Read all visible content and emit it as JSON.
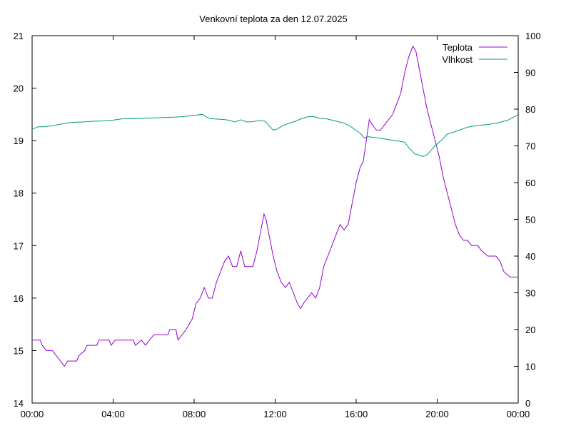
{
  "chart_data": {
    "type": "line",
    "title": "Venkovní teplota za den 12.07.2025",
    "x_ticks": [
      "00:00",
      "04:00",
      "08:00",
      "12:00",
      "16:00",
      "20:00",
      "00:00"
    ],
    "xlim_hours": [
      0,
      24
    ],
    "y_left": {
      "ticks": [
        14,
        15,
        16,
        17,
        18,
        19,
        20,
        21
      ],
      "lim": [
        14,
        21
      ]
    },
    "y_right": {
      "ticks": [
        0,
        10,
        20,
        30,
        40,
        50,
        60,
        70,
        80,
        90,
        100
      ],
      "lim": [
        0,
        100
      ]
    },
    "grid": false,
    "legend_position": "top-right",
    "series": [
      {
        "name": "Teplota",
        "axis": "left",
        "color": "#9400d3",
        "points": [
          [
            0.0,
            15.2
          ],
          [
            0.4,
            15.2
          ],
          [
            0.5,
            15.1
          ],
          [
            0.7,
            15.0
          ],
          [
            1.0,
            15.0
          ],
          [
            1.2,
            14.9
          ],
          [
            1.4,
            14.8
          ],
          [
            1.6,
            14.7
          ],
          [
            1.75,
            14.8
          ],
          [
            2.2,
            14.8
          ],
          [
            2.3,
            14.9
          ],
          [
            2.6,
            15.0
          ],
          [
            2.7,
            15.1
          ],
          [
            3.2,
            15.1
          ],
          [
            3.3,
            15.2
          ],
          [
            3.8,
            15.2
          ],
          [
            3.9,
            15.1
          ],
          [
            4.1,
            15.2
          ],
          [
            5.0,
            15.2
          ],
          [
            5.1,
            15.1
          ],
          [
            5.4,
            15.2
          ],
          [
            5.6,
            15.1
          ],
          [
            5.8,
            15.2
          ],
          [
            6.0,
            15.3
          ],
          [
            6.7,
            15.3
          ],
          [
            6.8,
            15.4
          ],
          [
            7.1,
            15.4
          ],
          [
            7.2,
            15.2
          ],
          [
            7.4,
            15.3
          ],
          [
            7.6,
            15.4
          ],
          [
            7.9,
            15.6
          ],
          [
            8.1,
            15.9
          ],
          [
            8.3,
            16.0
          ],
          [
            8.5,
            16.2
          ],
          [
            8.7,
            16.0
          ],
          [
            8.9,
            16.0
          ],
          [
            9.1,
            16.3
          ],
          [
            9.3,
            16.5
          ],
          [
            9.5,
            16.7
          ],
          [
            9.7,
            16.8
          ],
          [
            9.9,
            16.6
          ],
          [
            10.1,
            16.6
          ],
          [
            10.3,
            16.9
          ],
          [
            10.5,
            16.6
          ],
          [
            10.7,
            16.6
          ],
          [
            10.9,
            16.6
          ],
          [
            11.1,
            16.9
          ],
          [
            11.3,
            17.3
          ],
          [
            11.45,
            17.6
          ],
          [
            11.55,
            17.5
          ],
          [
            11.7,
            17.2
          ],
          [
            11.9,
            16.8
          ],
          [
            12.1,
            16.5
          ],
          [
            12.3,
            16.3
          ],
          [
            12.5,
            16.2
          ],
          [
            12.7,
            16.3
          ],
          [
            12.9,
            16.1
          ],
          [
            13.1,
            15.9
          ],
          [
            13.25,
            15.8
          ],
          [
            13.4,
            15.9
          ],
          [
            13.6,
            16.0
          ],
          [
            13.8,
            16.1
          ],
          [
            14.0,
            16.0
          ],
          [
            14.2,
            16.2
          ],
          [
            14.4,
            16.6
          ],
          [
            14.6,
            16.8
          ],
          [
            14.8,
            17.0
          ],
          [
            15.0,
            17.2
          ],
          [
            15.2,
            17.4
          ],
          [
            15.4,
            17.3
          ],
          [
            15.6,
            17.4
          ],
          [
            15.8,
            17.8
          ],
          [
            16.0,
            18.2
          ],
          [
            16.2,
            18.5
          ],
          [
            16.35,
            18.6
          ],
          [
            16.5,
            19.0
          ],
          [
            16.65,
            19.4
          ],
          [
            16.8,
            19.3
          ],
          [
            17.0,
            19.2
          ],
          [
            17.2,
            19.2
          ],
          [
            17.4,
            19.3
          ],
          [
            17.6,
            19.4
          ],
          [
            17.8,
            19.5
          ],
          [
            18.0,
            19.7
          ],
          [
            18.2,
            19.9
          ],
          [
            18.4,
            20.3
          ],
          [
            18.6,
            20.6
          ],
          [
            18.8,
            20.8
          ],
          [
            18.95,
            20.7
          ],
          [
            19.1,
            20.4
          ],
          [
            19.3,
            20.0
          ],
          [
            19.5,
            19.6
          ],
          [
            19.7,
            19.3
          ],
          [
            19.9,
            19.0
          ],
          [
            20.1,
            18.7
          ],
          [
            20.3,
            18.3
          ],
          [
            20.5,
            18.0
          ],
          [
            20.7,
            17.7
          ],
          [
            20.9,
            17.4
          ],
          [
            21.1,
            17.2
          ],
          [
            21.3,
            17.1
          ],
          [
            21.5,
            17.1
          ],
          [
            21.7,
            17.0
          ],
          [
            22.0,
            17.0
          ],
          [
            22.2,
            16.9
          ],
          [
            22.5,
            16.8
          ],
          [
            22.9,
            16.8
          ],
          [
            23.1,
            16.7
          ],
          [
            23.3,
            16.5
          ],
          [
            23.6,
            16.4
          ],
          [
            24.0,
            16.4
          ]
        ]
      },
      {
        "name": "Vlhkost",
        "axis": "right",
        "color": "#009e73",
        "points": [
          [
            0.0,
            74.5
          ],
          [
            0.3,
            75.2
          ],
          [
            0.6,
            75.2
          ],
          [
            1.0,
            75.5
          ],
          [
            1.5,
            76.0
          ],
          [
            2.0,
            76.4
          ],
          [
            2.5,
            76.5
          ],
          [
            3.0,
            76.7
          ],
          [
            3.5,
            76.8
          ],
          [
            4.0,
            77.0
          ],
          [
            4.5,
            77.4
          ],
          [
            5.0,
            77.4
          ],
          [
            5.5,
            77.5
          ],
          [
            6.0,
            77.6
          ],
          [
            6.5,
            77.7
          ],
          [
            7.0,
            77.8
          ],
          [
            7.5,
            78.0
          ],
          [
            8.0,
            78.3
          ],
          [
            8.4,
            78.6
          ],
          [
            8.6,
            77.9
          ],
          [
            8.8,
            77.4
          ],
          [
            9.1,
            77.3
          ],
          [
            9.4,
            77.2
          ],
          [
            9.7,
            77.0
          ],
          [
            10.0,
            76.5
          ],
          [
            10.3,
            77.1
          ],
          [
            10.6,
            76.5
          ],
          [
            10.9,
            76.6
          ],
          [
            11.2,
            76.9
          ],
          [
            11.5,
            76.7
          ],
          [
            11.7,
            75.5
          ],
          [
            11.9,
            74.3
          ],
          [
            12.1,
            74.6
          ],
          [
            12.4,
            75.6
          ],
          [
            12.7,
            76.2
          ],
          [
            13.0,
            76.7
          ],
          [
            13.3,
            77.4
          ],
          [
            13.6,
            77.9
          ],
          [
            13.9,
            78.0
          ],
          [
            14.2,
            77.5
          ],
          [
            14.5,
            77.4
          ],
          [
            14.8,
            77.0
          ],
          [
            15.1,
            76.6
          ],
          [
            15.4,
            76.2
          ],
          [
            15.7,
            75.4
          ],
          [
            16.0,
            74.2
          ],
          [
            16.2,
            73.4
          ],
          [
            16.4,
            72.2
          ],
          [
            16.6,
            72.5
          ],
          [
            16.9,
            72.3
          ],
          [
            17.2,
            72.1
          ],
          [
            17.5,
            71.8
          ],
          [
            17.8,
            71.5
          ],
          [
            18.1,
            71.3
          ],
          [
            18.4,
            71.0
          ],
          [
            18.6,
            69.5
          ],
          [
            18.9,
            67.8
          ],
          [
            19.1,
            67.5
          ],
          [
            19.3,
            67.1
          ],
          [
            19.5,
            67.6
          ],
          [
            19.7,
            68.8
          ],
          [
            19.9,
            70.1
          ],
          [
            20.2,
            71.5
          ],
          [
            20.5,
            73.2
          ],
          [
            20.8,
            73.7
          ],
          [
            21.1,
            74.3
          ],
          [
            21.5,
            75.1
          ],
          [
            22.0,
            75.6
          ],
          [
            22.5,
            75.8
          ],
          [
            23.0,
            76.3
          ],
          [
            23.5,
            77.0
          ],
          [
            24.0,
            78.5
          ]
        ]
      }
    ]
  }
}
